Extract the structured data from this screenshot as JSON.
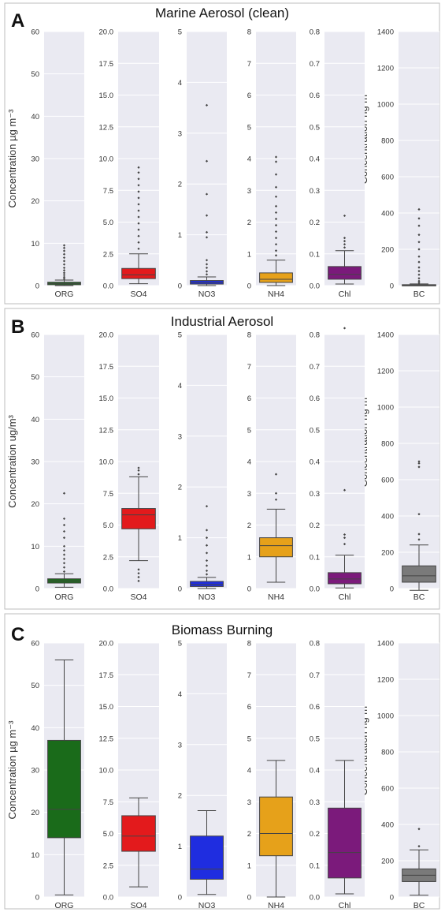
{
  "chart_data": [
    {
      "type": "box",
      "letter": "A",
      "title": "Marine Aerosol (clean)",
      "ylabel_mass": "Concentration µg m⁻³",
      "ylabel_bc": "Concentration ng m⁻³",
      "boxes": [
        {
          "name": "ORG",
          "color": "#1a6b1a",
          "ylim": [
            0,
            60
          ],
          "ticks": [
            0,
            10,
            20,
            30,
            40,
            50,
            60
          ],
          "tick_labels": [
            "0",
            "10",
            "20",
            "30",
            "40",
            "50",
            "60"
          ],
          "min": 0,
          "q1": 0.2,
          "median": 0.5,
          "q3": 0.8,
          "max": 1.3,
          "outliers": [
            1.6,
            2.0,
            2.5,
            3.0,
            3.6,
            4.2,
            5.0,
            5.8,
            6.6,
            7.4,
            8.2,
            8.9,
            9.5
          ]
        },
        {
          "name": "SO4",
          "color": "#e31a1c",
          "ylim": [
            0,
            20
          ],
          "ticks": [
            0,
            2.5,
            5,
            7.5,
            10,
            12.5,
            15,
            17.5,
            20
          ],
          "tick_labels": [
            "0.0",
            "2.5",
            "5.0",
            "7.5",
            "10.0",
            "12.5",
            "15.0",
            "17.5",
            "20.0"
          ],
          "min": 0.15,
          "q1": 0.55,
          "median": 0.85,
          "q3": 1.35,
          "max": 2.5,
          "outliers": [
            2.9,
            3.4,
            3.9,
            4.4,
            4.9,
            5.4,
            5.9,
            6.4,
            6.9,
            7.4,
            7.9,
            8.4,
            8.9,
            9.3
          ]
        },
        {
          "name": "NO3",
          "color": "#1f2de0",
          "ylim": [
            0,
            5
          ],
          "ticks": [
            0,
            1,
            2,
            3,
            4,
            5
          ],
          "tick_labels": [
            "0",
            "1",
            "2",
            "3",
            "4",
            "5"
          ],
          "min": 0,
          "q1": 0.03,
          "median": 0.06,
          "q3": 0.1,
          "max": 0.17,
          "outliers": [
            0.22,
            0.28,
            0.35,
            0.42,
            0.5,
            0.95,
            1.05,
            1.38,
            1.8,
            2.45,
            3.55
          ]
        },
        {
          "name": "NH4",
          "color": "#e6a11a",
          "ylim": [
            0,
            8
          ],
          "ticks": [
            0,
            1,
            2,
            3,
            4,
            5,
            6,
            7,
            8
          ],
          "tick_labels": [
            "0",
            "1",
            "2",
            "3",
            "4",
            "5",
            "6",
            "7",
            "8"
          ],
          "min": 0,
          "q1": 0.1,
          "median": 0.2,
          "q3": 0.4,
          "max": 0.8,
          "outliers": [
            0.95,
            1.1,
            1.3,
            1.5,
            1.7,
            1.9,
            2.1,
            2.3,
            2.5,
            2.8,
            3.1,
            3.5,
            3.9,
            4.05
          ]
        },
        {
          "name": "Chl",
          "color": "#7b1a7b",
          "ylim": [
            0,
            0.8
          ],
          "ticks": [
            0,
            0.1,
            0.2,
            0.3,
            0.4,
            0.5,
            0.6,
            0.7,
            0.8
          ],
          "tick_labels": [
            "0.0",
            "0.1",
            "0.2",
            "0.3",
            "0.4",
            "0.5",
            "0.6",
            "0.7",
            "0.8"
          ],
          "min": 0.005,
          "q1": 0.02,
          "median": 0.035,
          "q3": 0.06,
          "max": 0.11,
          "outliers": [
            0.12,
            0.13,
            0.14,
            0.15,
            0.22
          ]
        },
        {
          "name": "BC",
          "color": "#7a7a7a",
          "ylim": [
            0,
            1400
          ],
          "ticks": [
            0,
            200,
            400,
            600,
            800,
            1000,
            1200,
            1400
          ],
          "tick_labels": [
            "0",
            "200",
            "400",
            "600",
            "800",
            "1000",
            "1200",
            "1400"
          ],
          "min": 0,
          "q1": 1,
          "median": 3,
          "q3": 5,
          "max": 9,
          "outliers": [
            15,
            25,
            40,
            60,
            80,
            100,
            130,
            160,
            200,
            240,
            280,
            330,
            370,
            420
          ]
        }
      ]
    },
    {
      "type": "box",
      "letter": "B",
      "title": "Industrial Aerosol",
      "ylabel_mass": "Concentration ug/m³",
      "ylabel_bc": "Concentration ng m⁻³",
      "boxes": [
        {
          "name": "ORG",
          "color": "#1a6b1a",
          "ylim": [
            0,
            60
          ],
          "ticks": [
            0,
            10,
            20,
            30,
            40,
            50,
            60
          ],
          "tick_labels": [
            "0",
            "10",
            "20",
            "30",
            "40",
            "50",
            "60"
          ],
          "min": 0.3,
          "q1": 1.3,
          "median": 1.8,
          "q3": 2.3,
          "max": 3.5,
          "outliers": [
            4.0,
            5.0,
            6.0,
            7.0,
            8.0,
            9.0,
            10.0,
            12.0,
            13.5,
            15.0,
            16.5,
            22.5
          ]
        },
        {
          "name": "SO4",
          "color": "#e31a1c",
          "ylim": [
            0,
            20
          ],
          "ticks": [
            0,
            2.5,
            5,
            7.5,
            10,
            12.5,
            15,
            17.5,
            20
          ],
          "tick_labels": [
            "0.0",
            "2.5",
            "5.0",
            "7.5",
            "10.0",
            "12.5",
            "15.0",
            "17.5",
            "20.0"
          ],
          "min": 2.2,
          "q1": 4.7,
          "median": 5.8,
          "q3": 6.3,
          "max": 8.8,
          "outliers": [
            0.6,
            0.9,
            1.2,
            1.5,
            9.0,
            9.3,
            9.5
          ]
        },
        {
          "name": "NO3",
          "color": "#1f2de0",
          "ylim": [
            0,
            5
          ],
          "ticks": [
            0,
            1,
            2,
            3,
            4,
            5
          ],
          "tick_labels": [
            "0",
            "1",
            "2",
            "3",
            "4",
            "5"
          ],
          "min": 0,
          "q1": 0.04,
          "median": 0.08,
          "q3": 0.14,
          "max": 0.22,
          "outliers": [
            0.28,
            0.35,
            0.45,
            0.55,
            0.7,
            0.85,
            1.0,
            1.15,
            1.62
          ]
        },
        {
          "name": "NH4",
          "color": "#e6a11a",
          "ylim": [
            0,
            8
          ],
          "ticks": [
            0,
            1,
            2,
            3,
            4,
            5,
            6,
            7,
            8
          ],
          "tick_labels": [
            "0",
            "1",
            "2",
            "3",
            "4",
            "5",
            "6",
            "7",
            "8"
          ],
          "min": 0.2,
          "q1": 1.0,
          "median": 1.35,
          "q3": 1.6,
          "max": 2.5,
          "outliers": [
            2.8,
            3.0,
            3.6
          ]
        },
        {
          "name": "Chl",
          "color": "#7b1a7b",
          "ylim": [
            0,
            0.8
          ],
          "ticks": [
            0,
            0.1,
            0.2,
            0.3,
            0.4,
            0.5,
            0.6,
            0.7,
            0.8
          ],
          "tick_labels": [
            "0.0",
            "0.1",
            "0.2",
            "0.3",
            "0.4",
            "0.5",
            "0.6",
            "0.7",
            "0.8"
          ],
          "min": 0.002,
          "q1": 0.015,
          "median": 0.03,
          "q3": 0.05,
          "max": 0.105,
          "outliers": [
            0.14,
            0.16,
            0.17,
            0.31,
            0.82
          ]
        },
        {
          "name": "BC",
          "color": "#7a7a7a",
          "ylim": [
            0,
            1400
          ],
          "ticks": [
            0,
            200,
            400,
            600,
            800,
            1000,
            1200,
            1400
          ],
          "tick_labels": [
            "0",
            "200",
            "400",
            "600",
            "800",
            "1000",
            "1200",
            "1400"
          ],
          "min": -10,
          "q1": 35,
          "median": 70,
          "q3": 125,
          "max": 240,
          "outliers": [
            270,
            300,
            410,
            670,
            690,
            700
          ]
        }
      ]
    },
    {
      "type": "box",
      "letter": "C",
      "title": "Biomass Burning",
      "ylabel_mass": "Concentration µg m⁻³",
      "ylabel_bc": "Concentration ng m⁻³",
      "boxes": [
        {
          "name": "ORG",
          "color": "#1a6b1a",
          "ylim": [
            0,
            60
          ],
          "ticks": [
            0,
            10,
            20,
            30,
            40,
            50,
            60
          ],
          "tick_labels": [
            "0",
            "10",
            "20",
            "30",
            "40",
            "50",
            "60"
          ],
          "min": 0.5,
          "q1": 14,
          "median": 20.7,
          "q3": 37,
          "max": 56,
          "outliers": []
        },
        {
          "name": "SO4",
          "color": "#e31a1c",
          "ylim": [
            0,
            20
          ],
          "ticks": [
            0,
            2.5,
            5,
            7.5,
            10,
            12.5,
            15,
            17.5,
            20
          ],
          "tick_labels": [
            "0.0",
            "2.5",
            "5.0",
            "7.5",
            "10.0",
            "12.5",
            "15.0",
            "17.5",
            "20.0"
          ],
          "min": 0.8,
          "q1": 3.6,
          "median": 4.8,
          "q3": 6.4,
          "max": 7.8,
          "outliers": []
        },
        {
          "name": "NO3",
          "color": "#1f2de0",
          "ylim": [
            0,
            5
          ],
          "ticks": [
            0,
            1,
            2,
            3,
            4,
            5
          ],
          "tick_labels": [
            "0",
            "1",
            "2",
            "3",
            "4",
            "5"
          ],
          "min": 0.05,
          "q1": 0.35,
          "median": 0.55,
          "q3": 1.2,
          "max": 1.7,
          "outliers": []
        },
        {
          "name": "NH4",
          "color": "#e6a11a",
          "ylim": [
            0,
            8
          ],
          "ticks": [
            0,
            1,
            2,
            3,
            4,
            5,
            6,
            7,
            8
          ],
          "tick_labels": [
            "0",
            "1",
            "2",
            "3",
            "4",
            "5",
            "6",
            "7",
            "8"
          ],
          "min": 0,
          "q1": 1.3,
          "median": 2.0,
          "q3": 3.15,
          "max": 4.3,
          "outliers": []
        },
        {
          "name": "Chl",
          "color": "#7b1a7b",
          "ylim": [
            0,
            0.8
          ],
          "ticks": [
            0,
            0.1,
            0.2,
            0.3,
            0.4,
            0.5,
            0.6,
            0.7,
            0.8
          ],
          "tick_labels": [
            "0.0",
            "0.1",
            "0.2",
            "0.3",
            "0.4",
            "0.5",
            "0.6",
            "0.7",
            "0.8"
          ],
          "min": 0.01,
          "q1": 0.06,
          "median": 0.14,
          "q3": 0.28,
          "max": 0.43,
          "outliers": []
        },
        {
          "name": "BC",
          "color": "#7a7a7a",
          "ylim": [
            0,
            1400
          ],
          "ticks": [
            0,
            200,
            400,
            600,
            800,
            1000,
            1200,
            1400
          ],
          "tick_labels": [
            "0",
            "200",
            "400",
            "600",
            "800",
            "1000",
            "1200",
            "1400"
          ],
          "min": 10,
          "q1": 85,
          "median": 120,
          "q3": 155,
          "max": 260,
          "outliers": [
            280,
            375
          ]
        }
      ]
    }
  ]
}
